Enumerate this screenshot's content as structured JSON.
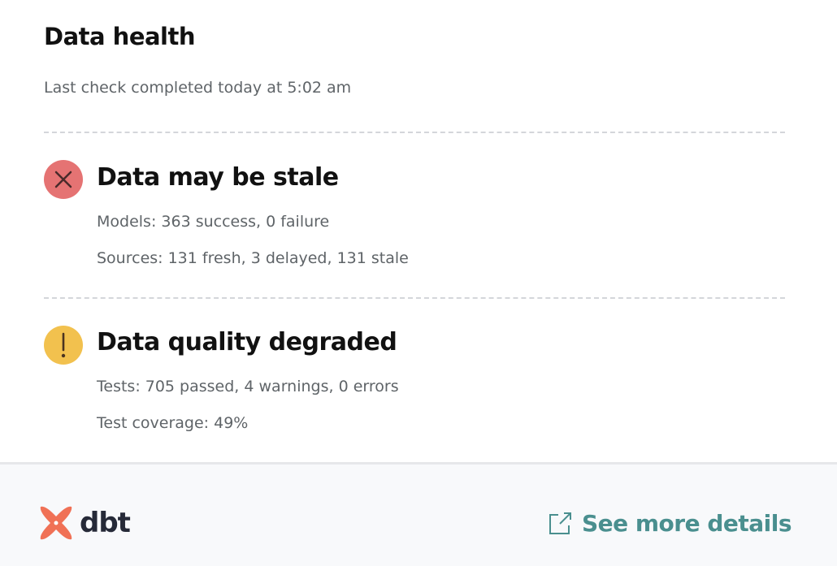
{
  "header": {
    "title": "Data health",
    "last_check": "Last check completed today at 5:02 am"
  },
  "sections": [
    {
      "status": "error",
      "icon": "x-icon",
      "color": "#e57373",
      "title": "Data may be stale",
      "details": [
        "Models: 363 success, 0 failure",
        "Sources: 131 fresh, 3 delayed, 131 stale"
      ]
    },
    {
      "status": "warning",
      "icon": "exclamation-icon",
      "color": "#f2c14e",
      "title": "Data quality degraded",
      "details": [
        "Tests: 705 passed, 4 warnings, 0 errors",
        "Test coverage: 49%"
      ]
    }
  ],
  "footer": {
    "logo_text": "dbt",
    "link_label": "See more details",
    "link_color": "#4a8f8f",
    "logo_color": "#f07156"
  }
}
